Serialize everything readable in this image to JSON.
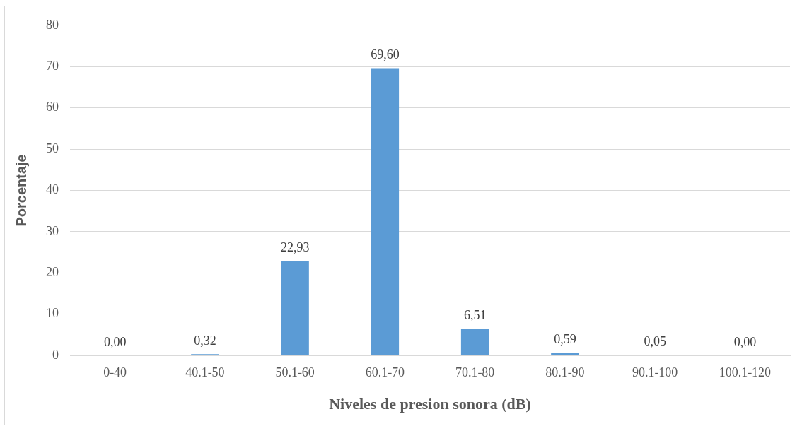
{
  "chart_data": {
    "type": "bar",
    "xlabel": "Niveles de presion sonora (dB)",
    "ylabel": "Porcentaje",
    "categories": [
      "0-40",
      "40.1-50",
      "50.1-60",
      "60.1-70",
      "70.1-80",
      "80.1-90",
      "90.1-100",
      "100.1-120"
    ],
    "values": [
      0,
      0.32,
      22.93,
      69.6,
      6.51,
      0.59,
      0.05,
      0
    ],
    "value_labels": [
      "0,00",
      "0,32",
      "22,93",
      "69,60",
      "6,51",
      "0,59",
      "0,05",
      "0,00"
    ],
    "color": "#5b9bd5",
    "ylim": [
      0,
      80
    ],
    "yticks": [
      0,
      10,
      20,
      30,
      40,
      50,
      60,
      70,
      80
    ],
    "grid": "y",
    "legend": false
  }
}
